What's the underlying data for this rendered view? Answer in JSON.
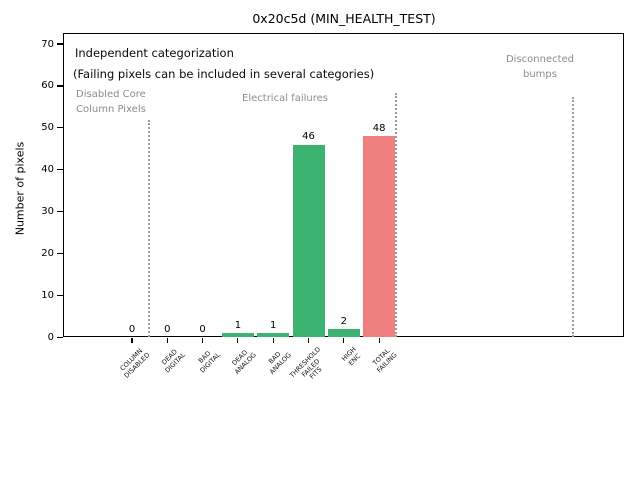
{
  "chart_data": {
    "type": "bar",
    "title": "0x20c5d (MIN_HEALTH_TEST)",
    "ylabel": "Number of pixels",
    "xlabel": "",
    "ylim": [
      0,
      70
    ],
    "yticks": [
      0,
      10,
      20,
      30,
      40,
      50,
      60,
      70
    ],
    "grid": false,
    "legend": "none",
    "categories": [
      "COLUMN\nDISABLED",
      "DEAD\nDIGITAL",
      "BAD\nDIGITAL",
      "DEAD\nANALOG",
      "BAD\nANALOG",
      "THRESHOLD\nFAILED\nFITS",
      "HIGH\nENC",
      "TOTAL\nFAILING"
    ],
    "values": [
      0,
      0,
      0,
      1,
      1,
      46,
      2,
      48
    ],
    "bar_colors": [
      "#3cb371",
      "#3cb371",
      "#3cb371",
      "#3cb371",
      "#3cb371",
      "#3cb371",
      "#3cb371",
      "#f08080"
    ],
    "value_label_color": "#000000",
    "annotations": {
      "note_line1": "Independent categorization",
      "note_line2": "(Failing pixels can be included in several categories)",
      "region_disabled": "Disabled Core\nColumn Pixels",
      "region_electrical": "Electrical failures",
      "region_disconnected": "Disconnected\nbumps"
    },
    "annotation_gray": "#8c8c8c",
    "separator_style": "dotted-gray"
  }
}
